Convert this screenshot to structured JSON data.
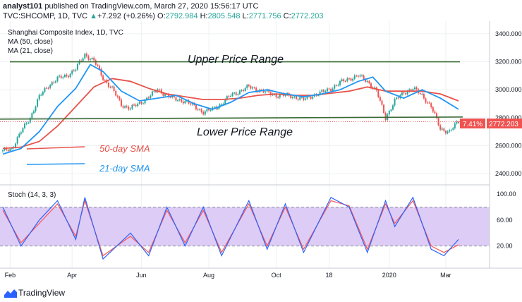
{
  "header": {
    "author": "analyst101",
    "published_text": "published on TradingView.com, March 27, 2020 15:56:17 UTC",
    "ticker_line": "TVC:SHCOMP, 1D, TVC",
    "change_text": "+7.292 (+0.26%)",
    "ohlc": [
      {
        "key": "O:",
        "val": "2792.984"
      },
      {
        "key": "H:",
        "val": "2805.548"
      },
      {
        "key": "L:",
        "val": "2771.756"
      },
      {
        "key": "C:",
        "val": "2772.203"
      }
    ]
  },
  "legend": {
    "title": "Shanghai Composite Index, 1D, TVC",
    "ma50": "MA (50, close)",
    "ma21": "MA (21, close)"
  },
  "annotations": {
    "upper": "Upper Price Range",
    "lower": "Lower Price Range",
    "sma50": "50-day SMA",
    "sma21": "21-day SMA"
  },
  "price_badge": {
    "pct": "7.41%",
    "price": "2772.203"
  },
  "footer": {
    "brand": "TradingView"
  },
  "colors": {
    "up": "#26a69a",
    "down": "#ef5350",
    "ma50": "#e8524a",
    "ma21": "#2196f3",
    "level": "#3a6b35",
    "stoch_k": "#2962ff",
    "stoch_d": "#ff5252",
    "stoch_band": "#ddccf5"
  },
  "chart_data": [
    {
      "type": "candlestick",
      "title": "Shanghai Composite Index, 1D, TVC",
      "x_ticks": [
        "Feb",
        "Apr",
        "Jun",
        "Aug",
        "Oct",
        "18",
        "2020",
        "Mar"
      ],
      "y_ticks": [
        "3400.000",
        "3200.000",
        "3000.000",
        "2800.000",
        "2600.000",
        "2400.000"
      ],
      "ylim": [
        2330,
        3470
      ],
      "levels": {
        "upper": 3200,
        "lower": 2790
      },
      "close_path": [
        [
          0,
          2560
        ],
        [
          5,
          2580
        ],
        [
          10,
          2700
        ],
        [
          15,
          2800
        ],
        [
          20,
          2950
        ],
        [
          25,
          3030
        ],
        [
          30,
          3080
        ],
        [
          35,
          3100
        ],
        [
          40,
          3150
        ],
        [
          45,
          3250
        ],
        [
          50,
          3210
        ],
        [
          55,
          3080
        ],
        [
          60,
          3010
        ],
        [
          65,
          2890
        ],
        [
          70,
          2870
        ],
        [
          75,
          2900
        ],
        [
          80,
          2950
        ],
        [
          85,
          3000
        ],
        [
          90,
          2960
        ],
        [
          95,
          2930
        ],
        [
          100,
          2920
        ],
        [
          105,
          2880
        ],
        [
          110,
          2840
        ],
        [
          115,
          2860
        ],
        [
          120,
          2900
        ],
        [
          125,
          2960
        ],
        [
          130,
          2990
        ],
        [
          135,
          3020
        ],
        [
          140,
          3000
        ],
        [
          145,
          2980
        ],
        [
          150,
          2960
        ],
        [
          155,
          2960
        ],
        [
          160,
          2950
        ],
        [
          165,
          2930
        ],
        [
          170,
          2960
        ],
        [
          175,
          2980
        ],
        [
          180,
          3010
        ],
        [
          185,
          3050
        ],
        [
          190,
          3080
        ],
        [
          195,
          3100
        ],
        [
          200,
          3060
        ],
        [
          205,
          2990
        ],
        [
          210,
          2800
        ],
        [
          215,
          2920
        ],
        [
          220,
          2980
        ],
        [
          225,
          3010
        ],
        [
          230,
          2960
        ],
        [
          235,
          2880
        ],
        [
          240,
          2720
        ],
        [
          245,
          2700
        ],
        [
          250,
          2772
        ]
      ],
      "ma21_path": [
        [
          0,
          2540
        ],
        [
          10,
          2580
        ],
        [
          20,
          2700
        ],
        [
          30,
          2880
        ],
        [
          40,
          3010
        ],
        [
          48,
          3180
        ],
        [
          55,
          3130
        ],
        [
          65,
          2990
        ],
        [
          75,
          2920
        ],
        [
          85,
          2940
        ],
        [
          95,
          2960
        ],
        [
          105,
          2900
        ],
        [
          115,
          2860
        ],
        [
          125,
          2910
        ],
        [
          135,
          2980
        ],
        [
          145,
          3000
        ],
        [
          155,
          2970
        ],
        [
          165,
          2950
        ],
        [
          175,
          2970
        ],
        [
          185,
          3000
        ],
        [
          195,
          3060
        ],
        [
          203,
          3090
        ],
        [
          210,
          2990
        ],
        [
          220,
          2940
        ],
        [
          230,
          3000
        ],
        [
          240,
          2940
        ],
        [
          250,
          2860
        ]
      ],
      "ma50_path": [
        [
          0,
          2580
        ],
        [
          10,
          2590
        ],
        [
          20,
          2630
        ],
        [
          30,
          2740
        ],
        [
          40,
          2880
        ],
        [
          50,
          3020
        ],
        [
          60,
          3080
        ],
        [
          70,
          3060
        ],
        [
          80,
          3010
        ],
        [
          90,
          2970
        ],
        [
          100,
          2950
        ],
        [
          110,
          2930
        ],
        [
          120,
          2930
        ],
        [
          130,
          2940
        ],
        [
          140,
          2960
        ],
        [
          150,
          2970
        ],
        [
          160,
          2960
        ],
        [
          170,
          2960
        ],
        [
          180,
          2975
        ],
        [
          190,
          2990
        ],
        [
          200,
          3020
        ],
        [
          210,
          2990
        ],
        [
          220,
          2990
        ],
        [
          230,
          2990
        ],
        [
          240,
          2970
        ],
        [
          250,
          2920
        ]
      ]
    },
    {
      "type": "line",
      "title": "Stoch (14, 3, 3)",
      "y_ticks": [
        "100.00",
        "60.00",
        "20.00"
      ],
      "ylim": [
        -12,
        110
      ],
      "band": [
        20,
        80
      ],
      "k_path": [
        [
          0,
          80
        ],
        [
          10,
          20
        ],
        [
          20,
          60
        ],
        [
          30,
          90
        ],
        [
          40,
          30
        ],
        [
          45,
          95
        ],
        [
          55,
          0
        ],
        [
          70,
          40
        ],
        [
          80,
          5
        ],
        [
          90,
          80
        ],
        [
          100,
          20
        ],
        [
          110,
          80
        ],
        [
          120,
          5
        ],
        [
          135,
          90
        ],
        [
          145,
          15
        ],
        [
          155,
          85
        ],
        [
          165,
          10
        ],
        [
          180,
          95
        ],
        [
          190,
          80
        ],
        [
          200,
          10
        ],
        [
          210,
          90
        ],
        [
          215,
          50
        ],
        [
          225,
          95
        ],
        [
          235,
          15
        ],
        [
          242,
          5
        ],
        [
          250,
          30
        ]
      ],
      "d_path": [
        [
          0,
          75
        ],
        [
          10,
          25
        ],
        [
          20,
          55
        ],
        [
          30,
          85
        ],
        [
          40,
          35
        ],
        [
          45,
          90
        ],
        [
          55,
          5
        ],
        [
          70,
          35
        ],
        [
          80,
          10
        ],
        [
          90,
          75
        ],
        [
          100,
          25
        ],
        [
          110,
          75
        ],
        [
          120,
          10
        ],
        [
          135,
          85
        ],
        [
          145,
          20
        ],
        [
          155,
          80
        ],
        [
          165,
          15
        ],
        [
          180,
          90
        ],
        [
          190,
          82
        ],
        [
          200,
          15
        ],
        [
          210,
          85
        ],
        [
          215,
          55
        ],
        [
          225,
          90
        ],
        [
          235,
          20
        ],
        [
          242,
          10
        ],
        [
          250,
          22
        ]
      ]
    }
  ]
}
